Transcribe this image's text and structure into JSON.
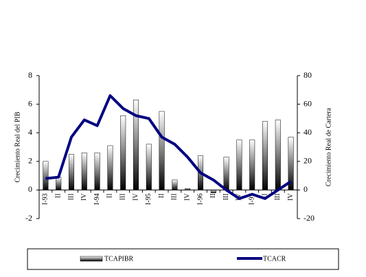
{
  "chart_data": {
    "type": "bar",
    "categories": [
      "I-93",
      "II",
      "III",
      "IV",
      "I-94",
      "II",
      "III",
      "IV",
      "I-95",
      "II",
      "III",
      "IV",
      "I-96",
      "II",
      "III",
      "IV",
      "I-97",
      "II",
      "III",
      "IV"
    ],
    "y_label": "Crecimiento Real del PIB",
    "y2_label": "Crecimiento Real de Cartera",
    "ylim": [
      -2,
      8
    ],
    "yticks": [
      -2,
      0,
      2,
      4,
      6,
      8
    ],
    "y2lim": [
      -20,
      80
    ],
    "y2ticks": [
      -20,
      0,
      20,
      40,
      60,
      80
    ],
    "series": [
      {
        "name": "TCAPIBR",
        "type": "bar",
        "color": "#000000",
        "values": [
          2.0,
          0.9,
          2.5,
          2.6,
          2.6,
          3.1,
          5.2,
          6.3,
          3.2,
          5.5,
          0.7,
          0.1,
          2.4,
          -0.2,
          2.3,
          3.5,
          3.5,
          4.8,
          4.9,
          3.7
        ]
      },
      {
        "name": "TCACR",
        "type": "line",
        "axis": "y2",
        "color": "#000080",
        "values": [
          8,
          9,
          37,
          49,
          45,
          66,
          57,
          52,
          50,
          37,
          32,
          23,
          12,
          7,
          0,
          -6,
          -3,
          -6,
          0,
          6
        ]
      }
    ]
  }
}
